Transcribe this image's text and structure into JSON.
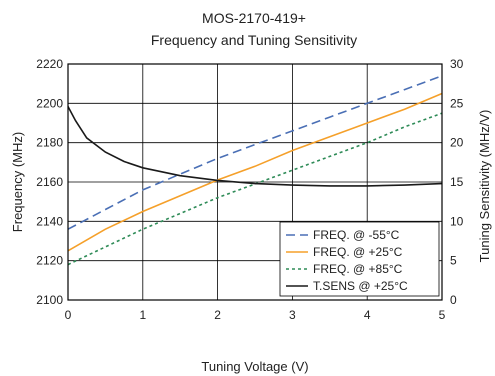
{
  "chart_data": {
    "type": "line",
    "title": "MOS-2170-419+",
    "subtitle": "Frequency and Tuning Sensitivity",
    "xlabel": "Tuning Voltage (V)",
    "ylabel": "Frequency (MHz)",
    "y2label": "Tuning Sensitivity (MHz/V)",
    "xlim": [
      0,
      5
    ],
    "ylim": [
      2100,
      2220
    ],
    "y2lim": [
      0,
      30
    ],
    "x_ticks": [
      "0",
      "1",
      "2",
      "3",
      "4",
      "5"
    ],
    "y_ticks": [
      "2100",
      "2120",
      "2140",
      "2160",
      "2180",
      "2200",
      "2220"
    ],
    "y2_ticks": [
      "0",
      "5",
      "10",
      "15",
      "20",
      "25",
      "30"
    ],
    "grid": true,
    "legend_position": "bottom-right",
    "series": [
      {
        "name": "FREQ. @ -55°C",
        "axis": "left",
        "color": "#4a6fb5",
        "dash": "dashed",
        "x": [
          0,
          0.5,
          1,
          1.5,
          2,
          2.5,
          3,
          3.5,
          4,
          4.5,
          5
        ],
        "y": [
          2136,
          2146,
          2156,
          2164,
          2172,
          2179,
          2186,
          2193,
          2200,
          2207,
          2214
        ]
      },
      {
        "name": "FREQ. @ +25°C",
        "axis": "left",
        "color": "#f5a02a",
        "dash": "solid",
        "x": [
          0,
          0.5,
          1,
          1.5,
          2,
          2.5,
          3,
          3.5,
          4,
          4.5,
          5
        ],
        "y": [
          2125,
          2136,
          2145,
          2153,
          2161,
          2168,
          2176,
          2183,
          2190,
          2197,
          2205
        ]
      },
      {
        "name": "FREQ. @ +85°C",
        "axis": "left",
        "color": "#2e8b57",
        "dash": "dotted",
        "x": [
          0,
          0.5,
          1,
          1.5,
          2,
          2.5,
          3,
          3.5,
          4,
          4.5,
          5
        ],
        "y": [
          2118,
          2127,
          2136,
          2144,
          2152,
          2159,
          2166,
          2173,
          2180,
          2188,
          2195
        ]
      },
      {
        "name": "T.SENS @ +25°C",
        "axis": "right",
        "color": "#1a1a1a",
        "dash": "solid",
        "x": [
          0,
          0.1,
          0.25,
          0.5,
          0.75,
          1,
          1.5,
          2,
          2.5,
          3,
          3.5,
          4,
          4.5,
          5
        ],
        "y": [
          24.6,
          22.8,
          20.6,
          18.8,
          17.6,
          16.8,
          15.8,
          15.2,
          14.8,
          14.6,
          14.5,
          14.5,
          14.6,
          14.8
        ]
      }
    ]
  }
}
